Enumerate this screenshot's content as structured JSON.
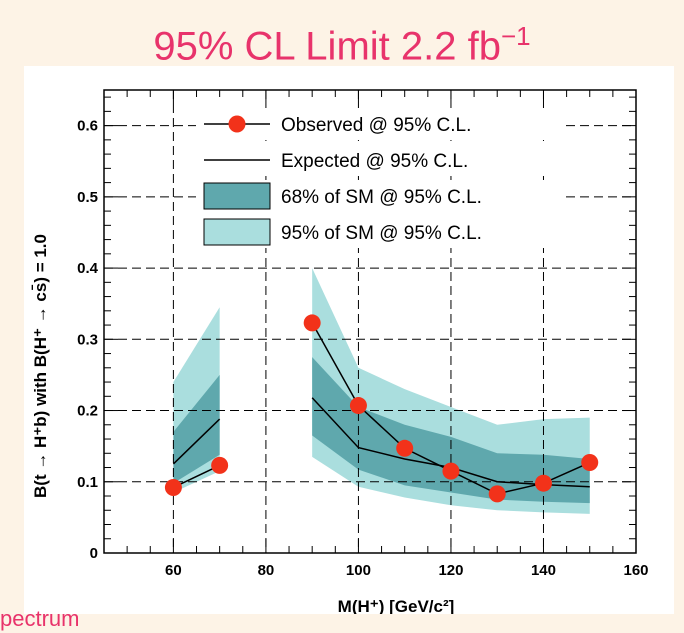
{
  "slide": {
    "title": "95% CL Limit 2.2 fb",
    "title_sup": "−1",
    "footer": "pectrum"
  },
  "colors": {
    "title": "#e8336b",
    "band68": "#5fa8ad",
    "band95": "#aadede",
    "observed": "#f2321a",
    "expected": "#000000"
  },
  "chart_data": {
    "type": "line",
    "title": "95% CL Limit 2.2 fb−1",
    "xlabel": "M(H⁺) [GeV/c²]",
    "ylabel": "B(t → H⁺b) with B(H⁺ → cs̄) = 1.0",
    "xlim": [
      45,
      160
    ],
    "ylim": [
      0,
      0.65
    ],
    "xticks": [
      "60",
      "80",
      "100",
      "120",
      "140",
      "160"
    ],
    "yticks": [
      "0",
      "0.1",
      "0.2",
      "0.3",
      "0.4",
      "0.5",
      "0.6"
    ],
    "grid": "dashed gridlines at major ticks",
    "legend_position": "top-right",
    "segments": [
      {
        "x": [
          60,
          70
        ],
        "observed": [
          0.092,
          0.123
        ],
        "expected": [
          0.125,
          0.188
        ],
        "band68_low": [
          0.098,
          0.138
        ],
        "band68_high": [
          0.17,
          0.25
        ],
        "band95_low": [
          0.085,
          0.115
        ],
        "band95_high": [
          0.24,
          0.345
        ]
      },
      {
        "x": [
          90,
          100,
          110,
          120,
          130,
          140,
          150
        ],
        "observed": [
          0.323,
          0.207,
          0.147,
          0.115,
          0.083,
          0.098,
          0.127
        ],
        "expected": [
          0.218,
          0.148,
          0.132,
          0.12,
          0.1,
          0.096,
          0.093
        ],
        "band68_low": [
          0.165,
          0.117,
          0.095,
          0.085,
          0.075,
          0.072,
          0.07
        ],
        "band68_high": [
          0.275,
          0.205,
          0.18,
          0.163,
          0.14,
          0.138,
          0.132
        ],
        "band95_low": [
          0.135,
          0.093,
          0.078,
          0.067,
          0.06,
          0.057,
          0.055
        ],
        "band95_high": [
          0.4,
          0.26,
          0.23,
          0.205,
          0.18,
          0.188,
          0.19
        ]
      }
    ],
    "legend": [
      {
        "key": "observed",
        "label": "Observed @ 95% C.L."
      },
      {
        "key": "expected",
        "label": "Expected @ 95% C.L."
      },
      {
        "key": "band68",
        "label": "68% of SM @ 95% C.L."
      },
      {
        "key": "band95",
        "label": "95% of SM @ 95% C.L."
      }
    ]
  }
}
